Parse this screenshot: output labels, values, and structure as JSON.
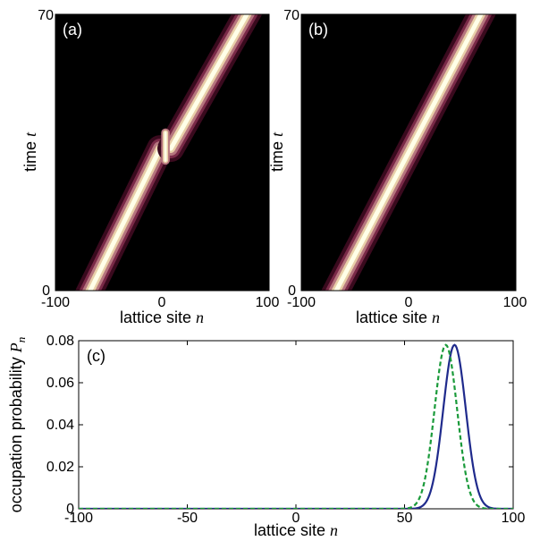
{
  "chart_data": [
    {
      "type": "heatmap",
      "panel_label": "(a)",
      "xlabel": "lattice site",
      "xlabel_var": "n",
      "ylabel": "time",
      "ylabel_var": "t",
      "xlim": [
        -100,
        100
      ],
      "ylim": [
        0,
        70
      ],
      "xticks": [
        "-100",
        "0",
        "100"
      ],
      "yticks": [
        "0",
        "70"
      ],
      "background_color": "#000000",
      "colormap": [
        "#000000",
        "#3a0a1e",
        "#7a2a48",
        "#b5757e",
        "#e8cfa8",
        "#ffffe8"
      ],
      "beam": {
        "segments": [
          {
            "t_start": 0,
            "t_end": 36,
            "n_start": -70,
            "n_end": -2
          },
          {
            "t_start": 36,
            "t_end": 70,
            "n_start": 8,
            "n_end": 82
          }
        ],
        "glitch": {
          "t_low": 33,
          "t_high": 40,
          "n": 3
        }
      }
    },
    {
      "type": "heatmap",
      "panel_label": "(b)",
      "xlabel": "lattice site",
      "xlabel_var": "n",
      "ylabel": "time",
      "ylabel_var": "t",
      "xlim": [
        -100,
        100
      ],
      "ylim": [
        0,
        70
      ],
      "xticks": [
        "-100",
        "0",
        "100"
      ],
      "yticks": [
        "0",
        "70"
      ],
      "background_color": "#000000",
      "colormap": [
        "#000000",
        "#3a0a1e",
        "#7a2a48",
        "#b5757e",
        "#e8cfa8",
        "#ffffe8"
      ],
      "beam": {
        "segments": [
          {
            "t_start": 0,
            "t_end": 70,
            "n_start": -70,
            "n_end": 70
          }
        ]
      }
    },
    {
      "type": "line",
      "panel_label": "(c)",
      "xlabel": "lattice site",
      "xlabel_var": "n",
      "ylabel": "occupation probability",
      "ylabel_var": "P",
      "ylabel_sub": "n",
      "xlim": [
        -100,
        100
      ],
      "ylim": [
        0,
        0.08
      ],
      "xticks": [
        "-100",
        "-50",
        "0",
        "50",
        "100"
      ],
      "yticks": [
        "0",
        "0.02",
        "0.04",
        "0.06",
        "0.08"
      ],
      "series": [
        {
          "style": "solid",
          "color": "#1f2a8c",
          "model": "gaussian",
          "peak": 0.078,
          "center": 73,
          "width": 5.2
        },
        {
          "style": "dashed",
          "color": "#1a9a3a",
          "model": "gaussian",
          "peak": 0.078,
          "center": 69,
          "width": 5.2
        }
      ]
    }
  ]
}
